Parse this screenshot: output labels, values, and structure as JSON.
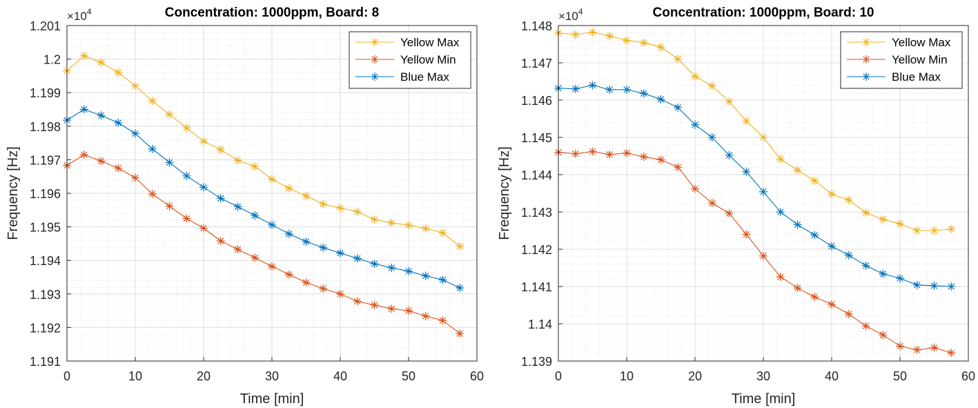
{
  "chart_data": [
    {
      "type": "line",
      "title": "Concentration: 1000ppm, Board: 8",
      "xlabel": "Time [min]",
      "ylabel": "Frequency [Hz]",
      "exponent_label": "×10",
      "exponent_power": "4",
      "xlim": [
        0,
        60
      ],
      "ylim": [
        1.191,
        1.201
      ],
      "xticks": [
        "0",
        "10",
        "20",
        "30",
        "40",
        "50",
        "60"
      ],
      "yticks": [
        "1.191",
        "1.192",
        "1.193",
        "1.194",
        "1.195",
        "1.196",
        "1.197",
        "1.198",
        "1.199",
        "1.2",
        "1.201"
      ],
      "grid": true,
      "legend_position": "top-right",
      "x": [
        0,
        2.5,
        5,
        7.5,
        10,
        12.5,
        15,
        17.5,
        20,
        22.5,
        25,
        27.5,
        30,
        32.5,
        35,
        37.5,
        40,
        42.5,
        45,
        47.5,
        50,
        52.5,
        55,
        57.5
      ],
      "series": [
        {
          "name": "Yellow Max",
          "color": "#EDB120",
          "values": [
            1.19965,
            1.2001,
            1.1999,
            1.1996,
            1.1992,
            1.19875,
            1.19835,
            1.19795,
            1.19755,
            1.1973,
            1.19698,
            1.1968,
            1.19642,
            1.19615,
            1.19592,
            1.19568,
            1.19556,
            1.19545,
            1.19522,
            1.19512,
            1.19505,
            1.19495,
            1.19482,
            1.19442
          ]
        },
        {
          "name": "Yellow Min",
          "color": "#D95319",
          "values": [
            1.19683,
            1.19715,
            1.19696,
            1.19675,
            1.19646,
            1.19598,
            1.19562,
            1.19525,
            1.19496,
            1.19458,
            1.19433,
            1.19408,
            1.19382,
            1.19358,
            1.19334,
            1.19316,
            1.193,
            1.19278,
            1.19267,
            1.19256,
            1.1925,
            1.19234,
            1.19221,
            1.19182
          ]
        },
        {
          "name": "Blue Max",
          "color": "#0072BD",
          "values": [
            1.19818,
            1.1985,
            1.19832,
            1.1981,
            1.19778,
            1.19732,
            1.19692,
            1.19652,
            1.19618,
            1.19585,
            1.1956,
            1.19534,
            1.19506,
            1.19479,
            1.19456,
            1.19438,
            1.19422,
            1.19406,
            1.1939,
            1.19378,
            1.19368,
            1.19354,
            1.19342,
            1.19318
          ]
        }
      ]
    },
    {
      "type": "line",
      "title": "Concentration: 1000ppm, Board: 10",
      "xlabel": "Time [min]",
      "ylabel": "Frequency [Hz]",
      "exponent_label": "×10",
      "exponent_power": "4",
      "xlim": [
        0,
        60
      ],
      "ylim": [
        1.139,
        1.148
      ],
      "xticks": [
        "0",
        "10",
        "20",
        "30",
        "40",
        "50",
        "60"
      ],
      "yticks": [
        "1.139",
        "1.14",
        "1.141",
        "1.142",
        "1.143",
        "1.144",
        "1.145",
        "1.146",
        "1.147",
        "1.148"
      ],
      "grid": true,
      "legend_position": "top-right",
      "x": [
        0,
        2.5,
        5,
        7.5,
        10,
        12.5,
        15,
        17.5,
        20,
        22.5,
        25,
        27.5,
        30,
        32.5,
        35,
        37.5,
        40,
        42.5,
        45,
        47.5,
        50,
        52.5,
        55,
        57.5
      ],
      "series": [
        {
          "name": "Yellow Max",
          "color": "#EDB120",
          "values": [
            1.1478,
            1.14776,
            1.14782,
            1.14772,
            1.1476,
            1.14754,
            1.14742,
            1.1471,
            1.14664,
            1.14638,
            1.14596,
            1.14544,
            1.145,
            1.14442,
            1.14412,
            1.14384,
            1.14348,
            1.14332,
            1.14298,
            1.1428,
            1.14268,
            1.1425,
            1.1425,
            1.14254
          ]
        },
        {
          "name": "Yellow Min",
          "color": "#D95319",
          "values": [
            1.1446,
            1.14456,
            1.14462,
            1.14454,
            1.14458,
            1.14448,
            1.1444,
            1.1442,
            1.14362,
            1.14324,
            1.14296,
            1.1424,
            1.14182,
            1.14126,
            1.14096,
            1.14072,
            1.14052,
            1.14026,
            1.13994,
            1.1397,
            1.1394,
            1.1393,
            1.13936,
            1.13922
          ]
        },
        {
          "name": "Blue Max",
          "color": "#0072BD",
          "values": [
            1.14632,
            1.1463,
            1.1464,
            1.14628,
            1.14628,
            1.14618,
            1.14602,
            1.1458,
            1.14534,
            1.145,
            1.14452,
            1.14408,
            1.14354,
            1.143,
            1.14266,
            1.14238,
            1.14208,
            1.14184,
            1.14156,
            1.14134,
            1.14122,
            1.14104,
            1.14102,
            1.141
          ]
        }
      ]
    }
  ]
}
